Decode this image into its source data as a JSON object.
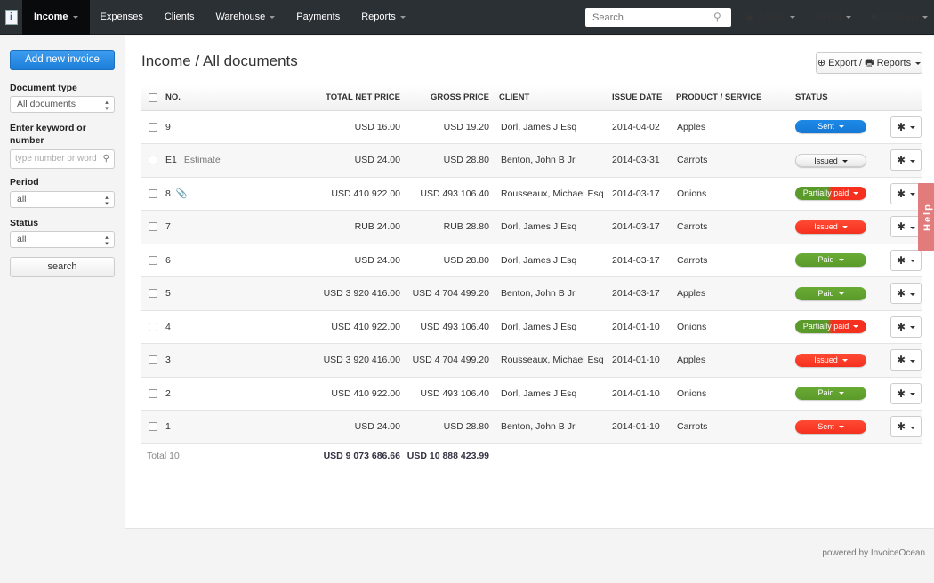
{
  "nav": {
    "items": [
      {
        "label": "Income",
        "active": true,
        "caret": true
      },
      {
        "label": "Expenses"
      },
      {
        "label": "Clients"
      },
      {
        "label": "Warehouse",
        "caret": true
      },
      {
        "label": "Payments"
      },
      {
        "label": "Reports",
        "caret": true
      }
    ],
    "search_placeholder": "Search",
    "company": "ACME",
    "user": "michal",
    "settings": "Settings"
  },
  "sidebar": {
    "add_button": "Add new invoice",
    "doc_type_label": "Document type",
    "doc_type_value": "All documents",
    "keyword_label": "Enter keyword or number",
    "keyword_placeholder": "type number or word",
    "period_label": "Period",
    "period_value": "all",
    "status_label": "Status",
    "status_value": "all",
    "search_button": "search"
  },
  "main": {
    "title": "Income / All documents",
    "export_button": "Export / 🖶 Reports",
    "columns": [
      "NO.",
      "TOTAL NET PRICE",
      "GROSS PRICE",
      "CLIENT",
      "ISSUE DATE",
      "PRODUCT / SERVICE",
      "STATUS"
    ],
    "rows": [
      {
        "no": "9",
        "extra": "",
        "net": "USD 16.00",
        "gross": "USD 19.20",
        "client": "Dorl, James J Esq",
        "date": "2014-04-02",
        "product": "Apples",
        "status": "Sent",
        "status_style": "blue"
      },
      {
        "no": "E1",
        "extra": "Estimate",
        "net": "USD 24.00",
        "gross": "USD 28.80",
        "client": "Benton, John B Jr",
        "date": "2014-03-31",
        "product": "Carrots",
        "status": "Issued",
        "status_style": "white"
      },
      {
        "no": "8",
        "extra": "",
        "attachment": true,
        "net": "USD 410 922.00",
        "gross": "USD 493 106.40",
        "client": "Rousseaux, Michael Esq",
        "date": "2014-03-17",
        "product": "Onions",
        "status": "Partially paid",
        "status_style": "partial"
      },
      {
        "no": "7",
        "extra": "",
        "net": "RUB 24.00",
        "gross": "RUB 28.80",
        "client": "Dorl, James J Esq",
        "date": "2014-03-17",
        "product": "Carrots",
        "status": "Issued",
        "status_style": "red"
      },
      {
        "no": "6",
        "extra": "",
        "net": "USD 24.00",
        "gross": "USD 28.80",
        "client": "Dorl, James J Esq",
        "date": "2014-03-17",
        "product": "Carrots",
        "status": "Paid",
        "status_style": "green"
      },
      {
        "no": "5",
        "extra": "",
        "net": "USD 3 920 416.00",
        "gross": "USD 4 704 499.20",
        "client": "Benton, John B Jr",
        "date": "2014-03-17",
        "product": "Apples",
        "status": "Paid",
        "status_style": "green"
      },
      {
        "no": "4",
        "extra": "",
        "net": "USD 410 922.00",
        "gross": "USD 493 106.40",
        "client": "Dorl, James J Esq",
        "date": "2014-01-10",
        "product": "Onions",
        "status": "Partially paid",
        "status_style": "partial"
      },
      {
        "no": "3",
        "extra": "",
        "net": "USD 3 920 416.00",
        "gross": "USD 4 704 499.20",
        "client": "Rousseaux, Michael Esq",
        "date": "2014-01-10",
        "product": "Apples",
        "status": "Issued",
        "status_style": "red"
      },
      {
        "no": "2",
        "extra": "",
        "net": "USD 410 922.00",
        "gross": "USD 493 106.40",
        "client": "Dorl, James J Esq",
        "date": "2014-01-10",
        "product": "Onions",
        "status": "Paid",
        "status_style": "green"
      },
      {
        "no": "1",
        "extra": "",
        "net": "USD 24.00",
        "gross": "USD 28.80",
        "client": "Benton, John B Jr",
        "date": "2014-01-10",
        "product": "Carrots",
        "status": "Sent",
        "status_style": "red"
      }
    ],
    "total_label": "Total 10",
    "total_net": "USD 9 073 686.66",
    "total_gross": "USD 10 888 423.99"
  },
  "help": "Help",
  "footer": "powered by InvoiceOcean",
  "colors": {
    "blue": "#1d8ae8",
    "red": "#f5301e",
    "green": "#5a9a2a",
    "nav": "#2b3035"
  }
}
